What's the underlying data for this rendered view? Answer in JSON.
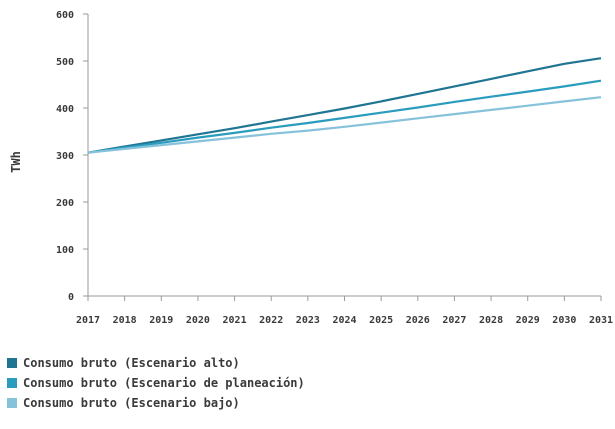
{
  "chart_data": {
    "type": "line",
    "title": "",
    "xlabel": "",
    "ylabel": "TWh",
    "x": [
      "2017",
      "2018",
      "2019",
      "2020",
      "2021",
      "2022",
      "2023",
      "2024",
      "2025",
      "2026",
      "2027",
      "2028",
      "2029",
      "2030",
      "2031"
    ],
    "ylim": [
      0,
      600
    ],
    "yticks": [
      "0",
      "100",
      "200",
      "300",
      "400",
      "500",
      "600"
    ],
    "grid": false,
    "legend_position": "bottom-left",
    "series": [
      {
        "name": "Consumo bruto (Escenario alto)",
        "color": "#1f7592",
        "values": [
          305,
          318,
          331,
          344,
          357,
          371,
          385,
          399,
          414,
          430,
          446,
          462,
          478,
          494,
          506
        ]
      },
      {
        "name": "Consumo bruto (Escenario de planeación)",
        "color": "#2a9cbd",
        "values": [
          305,
          316,
          326,
          337,
          347,
          358,
          368,
          379,
          390,
          401,
          413,
          424,
          435,
          446,
          458
        ]
      },
      {
        "name": "Consumo bruto (Escenario bajo)",
        "color": "#87c2db",
        "values": [
          305,
          313,
          321,
          329,
          337,
          345,
          352,
          360,
          369,
          378,
          387,
          396,
          405,
          414,
          423
        ]
      }
    ]
  }
}
